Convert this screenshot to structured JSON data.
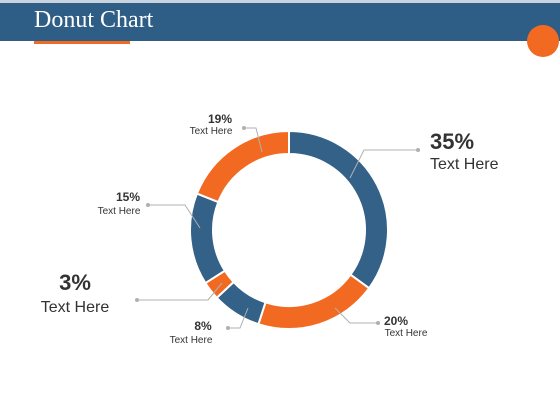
{
  "slide": {
    "title": "Donut Chart"
  },
  "colors": {
    "header": "#2e5d86",
    "accent": "#f26a21",
    "blue": "#346187",
    "orange": "#f26a21",
    "leader": "#b0b0b0"
  },
  "chart_data": {
    "type": "pie",
    "variant": "donut",
    "title": "",
    "slices": [
      {
        "value": 35,
        "label": "35%",
        "text": "Text Here",
        "color": "#346187"
      },
      {
        "value": 20,
        "label": "20%",
        "text": "Text Here",
        "color": "#f26a21"
      },
      {
        "value": 8,
        "label": "8%",
        "text": "Text Here",
        "color": "#346187"
      },
      {
        "value": 3,
        "label": "3%",
        "text": "Text Here",
        "color": "#f26a21"
      },
      {
        "value": 15,
        "label": "15%",
        "text": "Text Here",
        "color": "#346187"
      },
      {
        "value": 19,
        "label": "19%",
        "text": "Text Here",
        "color": "#f26a21"
      }
    ]
  }
}
